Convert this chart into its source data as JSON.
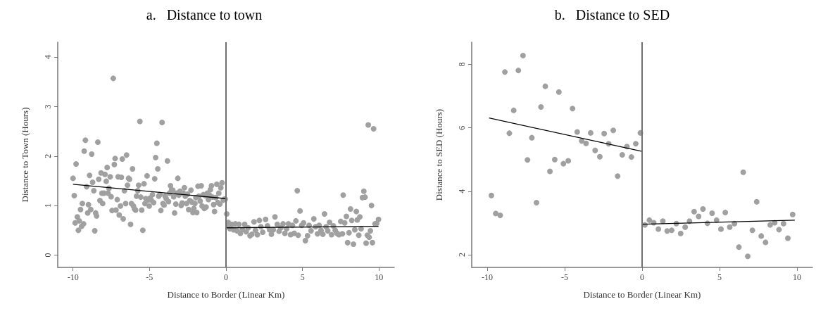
{
  "chart_data": [
    {
      "type": "scatter",
      "title": "a.   Distance to town",
      "xlabel": "Distance to Border (Linear Km)",
      "ylabel": "Distance to Town (Hours)",
      "xlim": [
        -11,
        11
      ],
      "xticks": [
        -10,
        -5,
        0,
        5,
        10
      ],
      "ylim": [
        -0.25,
        4.3
      ],
      "yticks": [
        0,
        1,
        2,
        3,
        4
      ],
      "ref_lines": [
        {
          "axis": "x",
          "value": 0,
          "color": "#707070"
        }
      ],
      "series": [
        {
          "color": "#a0a0a0",
          "marker": "circle",
          "x": [
            -10,
            -9.92,
            -9.8,
            -9.86,
            -9.72,
            -9.65,
            -9.59,
            -9.51,
            -9.44,
            -9.39,
            -9.31,
            -9.27,
            -9.19,
            -9.11,
            -9.04,
            -8.99,
            -8.92,
            -8.84,
            -8.78,
            -8.72,
            -8.64,
            -8.58,
            -8.52,
            -8.46,
            -8.38,
            -8.32,
            -8.24,
            -8.17,
            -8.11,
            -8.06,
            -7.98,
            -7.91,
            -7.83,
            -7.77,
            -7.71,
            -7.65,
            -7.57,
            -7.51,
            -7.45,
            -7.37,
            -7.3,
            -7.25,
            -7.19,
            -7.11,
            -7.05,
            -6.98,
            -6.9,
            -6.84,
            -6.78,
            -6.72,
            -6.64,
            -6.56,
            -6.5,
            -6.44,
            -6.37,
            -6.31,
            -6.24,
            -6.18,
            -6.11,
            -6.05,
            -5.98,
            -5.91,
            -5.85,
            -5.77,
            -5.71,
            -5.63,
            -5.57,
            -5.51,
            -5.44,
            -5.36,
            -5.3,
            -5.24,
            -5.16,
            -5.1,
            -5.02,
            -4.96,
            -4.89,
            -4.81,
            -4.73,
            -4.66,
            -4.6,
            -4.52,
            -4.46,
            -4.4,
            -4.32,
            -4.26,
            -4.18,
            -4.12,
            -4.05,
            -3.98,
            -3.91,
            -3.83,
            -3.76,
            -3.69,
            -3.63,
            -3.56,
            -3.48,
            -3.42,
            -3.36,
            -3.28,
            -3.21,
            -3.15,
            -3.08,
            -3.01,
            -2.93,
            -2.87,
            -2.79,
            -2.72,
            -2.66,
            -2.58,
            -2.52,
            -2.44,
            -2.37,
            -2.29,
            -2.23,
            -2.16,
            -2.1,
            -2.03,
            -1.97,
            -1.91,
            -1.83,
            -1.77,
            -1.69,
            -1.62,
            -1.56,
            -1.48,
            -1.42,
            -1.34,
            -1.3,
            -1.22,
            -1.15,
            -1.08,
            -1.02,
            -0.95,
            -0.89,
            -0.81,
            -0.75,
            -0.67,
            -0.6,
            -0.53,
            -0.47,
            -0.4,
            -0.34,
            -0.26,
            -0.18,
            -0.11,
            -0.05,
            0.05,
            0.14,
            0.2,
            0.26,
            0.38,
            0.5,
            0.61,
            0.72,
            0.84,
            0.94,
            1.07,
            1.22,
            1.32,
            1.45,
            1.57,
            1.69,
            1.83,
            1.93,
            2.05,
            2.18,
            2.28,
            2.4,
            2.59,
            2.71,
            2.85,
            2.97,
            3.09,
            3.2,
            3.35,
            3.47,
            3.58,
            3.73,
            3.85,
            3.96,
            4.08,
            4.22,
            4.34,
            4.46,
            4.57,
            4.66,
            4.72,
            4.84,
            4.95,
            5.07,
            5.19,
            5.33,
            5.43,
            5.56,
            5.74,
            5.86,
            5.98,
            6.09,
            6.21,
            6.33,
            6.44,
            6.54,
            6.65,
            6.77,
            6.9,
            7.02,
            7.14,
            7.26,
            7.38,
            7.5,
            7.61,
            7.66,
            7.76,
            7.87,
            7.95,
            8.04,
            8.14,
            8.22,
            8.33,
            8.42,
            8.52,
            8.58,
            8.68,
            8.75,
            8.83,
            8.92,
            9.01,
            9.09,
            9.16,
            9.24,
            9.3,
            9.36,
            9.44,
            9.51,
            9.57,
            9.65,
            9.74,
            9.85,
            9.97
          ],
          "values": [
            1.55,
            1.2,
            1.84,
            0.65,
            0.77,
            0.5,
            0.69,
            0.92,
            0.58,
            1.04,
            0.63,
            2.1,
            2.32,
            1.38,
            0.85,
            1.02,
            1.61,
            0.92,
            2.04,
            1.47,
            1.3,
            0.49,
            0.85,
            0.79,
            2.28,
            1.53,
            1.1,
            1.66,
            1.25,
            1.04,
            1.25,
            1.63,
            1.49,
            1.77,
            1.25,
            1.35,
            1.58,
            1.18,
            0.9,
            3.57,
            1.83,
            1.95,
            0.91,
            1.12,
            1.58,
            0.81,
            0.99,
            1.57,
            1.94,
            0.73,
            1.3,
            1.04,
            2.02,
            1.41,
            1.55,
            1.53,
            0.62,
            1.04,
            1.74,
            0.99,
            0.93,
            0.91,
            1.19,
            1.3,
            1.41,
            2.7,
            1.17,
            0.91,
            0.5,
            1.44,
            1.04,
            1.14,
            1.6,
            1.11,
            0.99,
            1.15,
            1.11,
            1.22,
            1.06,
            1.54,
            1.97,
            2.26,
            1.74,
            1.19,
            1.22,
            0.9,
            2.68,
            1.04,
            1.01,
            1.19,
            1.14,
            1.9,
            1.08,
            1.25,
            1.4,
            1.31,
            1.31,
            1.18,
            0.85,
            1.03,
            1.25,
            1.55,
            1.21,
            1.29,
            1,
            1.05,
            1.25,
            1.36,
            1.19,
            1.04,
            1.23,
            0.92,
            1.1,
            1.31,
            1.07,
            0.86,
            0.94,
            1.04,
            1.16,
            0.86,
            1.39,
            1.19,
            1.09,
            1.4,
            0.99,
            1.22,
            0.94,
            1.2,
            0.97,
            1.25,
            1.12,
            1.21,
            1.32,
            1.4,
            1.17,
            1.02,
            0.88,
            1.16,
            1.43,
            1.06,
            1.25,
            1.03,
            1.36,
            1.46,
            1.11,
            1.13,
            1.13,
            0.83,
            0.66,
            0.59,
            0.53,
            0.62,
            0.51,
            0.63,
            0.49,
            0.62,
            0.44,
            0.51,
            0.62,
            0.47,
            0.55,
            0.39,
            0.42,
            0.67,
            0.5,
            0.41,
            0.7,
            0.57,
            0.46,
            0.72,
            0.59,
            0.51,
            0.42,
            0.51,
            0.77,
            0.62,
            0.48,
            0.55,
            0.63,
            0.44,
            0.53,
            0.63,
            0.41,
            0.6,
            0.44,
            0.69,
            1.3,
            0.4,
            0.89,
            0.6,
            0.65,
            0.29,
            0.39,
            0.6,
            0.49,
            0.73,
            0.57,
            0.43,
            0.6,
            0.5,
            0.42,
            0.83,
            0.57,
            0.49,
            0.66,
            0.41,
            0.59,
            0.5,
            0.44,
            0.41,
            0.68,
            0.43,
            1.21,
            0.65,
            0.78,
            0.25,
            0.45,
            0.93,
            0.7,
            0.22,
            0.51,
            0.88,
            0.71,
            0.4,
            0.77,
            0.53,
            1.16,
            1.29,
            1.17,
            0.24,
            0.4,
            2.63,
            0.36,
            0.49,
            1,
            0.25,
            2.55,
            0.63,
            0.64,
            0.72
          ]
        },
        {
          "type": "line",
          "marker": "none",
          "color": "#000000",
          "x": [
            -10,
            0
          ],
          "values": [
            1.43,
            1.14
          ]
        },
        {
          "type": "line",
          "marker": "none",
          "color": "#000000",
          "x": [
            0,
            9.97
          ],
          "values": [
            0.55,
            0.58
          ]
        }
      ]
    },
    {
      "type": "scatter",
      "title": "b.   Distance to SED",
      "xlabel": "Distance to Border (Linear Km)",
      "ylabel": "Distance to SED (Hours)",
      "xlim": [
        -11,
        11
      ],
      "xticks": [
        -10,
        -5,
        0,
        5,
        10
      ],
      "ylim": [
        1.6,
        8.7
      ],
      "yticks": [
        2,
        4,
        6,
        8
      ],
      "ref_lines": [
        {
          "axis": "x",
          "value": 0,
          "color": "#707070"
        }
      ],
      "series": [
        {
          "color": "#a0a0a0",
          "marker": "circle",
          "x": [
            -9.73,
            -9.45,
            -9.16,
            -8.86,
            -8.57,
            -8.29,
            -7.99,
            -7.69,
            -7.4,
            -7.12,
            -6.82,
            -6.53,
            -6.25,
            -5.95,
            -5.64,
            -5.37,
            -5.08,
            -4.77,
            -4.49,
            -4.19,
            -3.9,
            -3.62,
            -3.32,
            -3.03,
            -2.73,
            -2.45,
            -2.16,
            -1.86,
            -1.58,
            -1.28,
            -0.98,
            -0.69,
            -0.41,
            -0.11,
            0.18,
            0.47,
            0.75,
            1.05,
            1.34,
            1.62,
            1.91,
            2.21,
            2.49,
            2.78,
            3.06,
            3.36,
            3.65,
            3.93,
            4.22,
            4.52,
            4.81,
            5.09,
            5.37,
            5.66,
            5.96,
            6.25,
            6.53,
            6.82,
            7.12,
            7.4,
            7.69,
            7.97,
            8.27,
            8.56,
            8.84,
            9.13,
            9.41,
            9.72
          ],
          "values": [
            3.87,
            3.3,
            3.24,
            7.76,
            5.83,
            6.55,
            7.81,
            8.28,
            4.99,
            5.69,
            3.64,
            6.66,
            7.31,
            4.63,
            5,
            7.13,
            4.87,
            4.96,
            6.61,
            5.87,
            5.59,
            5.51,
            5.84,
            5.29,
            5.09,
            5.82,
            5.5,
            5.92,
            4.48,
            5.15,
            5.41,
            5.08,
            5.5,
            5.84,
            2.94,
            3.09,
            3.01,
            2.81,
            3.06,
            2.75,
            2.77,
            2.98,
            2.67,
            2.87,
            3.06,
            3.36,
            3.21,
            3.44,
            2.99,
            3.31,
            3.09,
            2.81,
            3.33,
            2.87,
            2.98,
            2.24,
            4.6,
            1.95,
            2.77,
            3.67,
            2.59,
            2.39,
            2.94,
            3.01,
            2.79,
            2.98,
            2.52,
            3.27
          ]
        },
        {
          "type": "line",
          "marker": "none",
          "color": "#000000",
          "x": [
            -9.88,
            0
          ],
          "values": [
            6.31,
            5.26
          ]
        },
        {
          "type": "line",
          "marker": "none",
          "color": "#000000",
          "x": [
            0,
            9.86
          ],
          "values": [
            2.96,
            3.09
          ]
        }
      ]
    }
  ]
}
